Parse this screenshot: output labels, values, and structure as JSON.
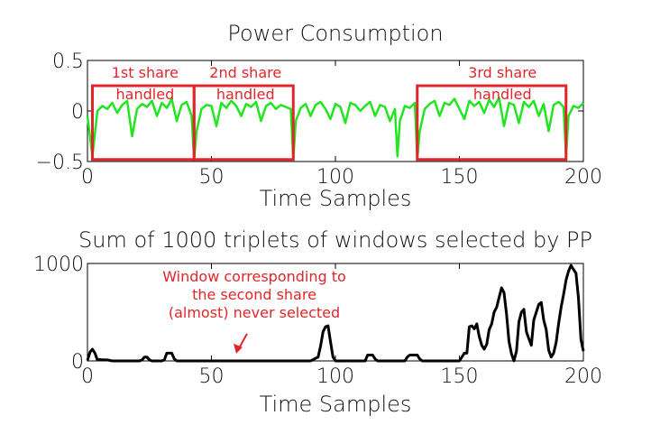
{
  "chart_data": [
    {
      "type": "line",
      "title": "Power Consumption",
      "xlabel": "Time Samples",
      "ylabel": "",
      "xlim": [
        0,
        200
      ],
      "ylim": [
        -0.5,
        0.5
      ],
      "xticks": [
        "0",
        "50",
        "100",
        "150",
        "200"
      ],
      "yticks": [
        "0.5",
        "0",
        "−0.5"
      ],
      "grid": false,
      "series_color": "#22e522",
      "annotation_color": "#e0262a",
      "series": [
        {
          "x": [
            0,
            2,
            4,
            6,
            8,
            10,
            12,
            14,
            16,
            18,
            20,
            22,
            24,
            26,
            28,
            30,
            32,
            34,
            36,
            38,
            40,
            42,
            43,
            44,
            46,
            48,
            50,
            52,
            54,
            56,
            58,
            60,
            62,
            64,
            66,
            68,
            70,
            72,
            74,
            76,
            78,
            80,
            82,
            83,
            84,
            86,
            88,
            90,
            92,
            94,
            96,
            98,
            100,
            102,
            104,
            106,
            108,
            110,
            112,
            114,
            116,
            118,
            120,
            122,
            124,
            125,
            126,
            128,
            130,
            132,
            133,
            134,
            136,
            138,
            140,
            142,
            144,
            146,
            148,
            150,
            152,
            154,
            156,
            158,
            160,
            162,
            164,
            166,
            168,
            170,
            172,
            174,
            176,
            178,
            180,
            182,
            184,
            186,
            188,
            190,
            192,
            193,
            194,
            196,
            198,
            200
          ],
          "values": [
            -0.05,
            -0.45,
            0.0,
            0.05,
            0.02,
            0.08,
            -0.02,
            0.06,
            0.1,
            -0.25,
            0.02,
            0.07,
            0.04,
            0.1,
            -0.05,
            0.08,
            0.03,
            0.12,
            -0.1,
            0.06,
            0.09,
            -0.05,
            -0.48,
            -0.2,
            0.02,
            0.06,
            0.05,
            -0.15,
            0.08,
            0.03,
            0.1,
            0.05,
            -0.05,
            0.07,
            0.04,
            0.09,
            -0.1,
            0.05,
            0.08,
            0.02,
            0.06,
            0.04,
            0.02,
            -0.48,
            -0.1,
            0.03,
            0.07,
            -0.05,
            0.06,
            0.09,
            0.02,
            -0.08,
            0.07,
            0.04,
            -0.12,
            0.08,
            0.06,
            0.0,
            0.05,
            0.09,
            -0.05,
            0.06,
            0.04,
            -0.1,
            0.02,
            -0.45,
            -0.1,
            0.05,
            0.03,
            0.08,
            -0.48,
            -0.2,
            0.02,
            0.07,
            0.1,
            -0.05,
            0.08,
            0.06,
            0.12,
            0.02,
            -0.08,
            0.1,
            0.05,
            0.09,
            -0.02,
            0.11,
            0.04,
            0.13,
            -0.15,
            0.08,
            0.06,
            -0.12,
            0.09,
            0.04,
            0.1,
            -0.05,
            0.07,
            -0.2,
            0.06,
            0.09,
            0.04,
            -0.45,
            -0.05,
            0.05,
            0.03,
            0.08
          ]
        }
      ],
      "annotations": [
        {
          "label_lines": [
            "1st share",
            "handled"
          ],
          "x_range": [
            2,
            43
          ],
          "y_range": [
            -0.48,
            0.25
          ]
        },
        {
          "label_lines": [
            "2nd share",
            "handled"
          ],
          "x_range": [
            43,
            83
          ],
          "y_range": [
            -0.48,
            0.25
          ]
        },
        {
          "label_lines": [
            "3rd share",
            "handled"
          ],
          "x_range": [
            133,
            193
          ],
          "y_range": [
            -0.48,
            0.25
          ]
        }
      ]
    },
    {
      "type": "line",
      "title": "Sum of 1000 triplets of windows selected by PP",
      "xlabel": "Time Samples",
      "ylabel": "",
      "xlim": [
        0,
        200
      ],
      "ylim": [
        0,
        1000
      ],
      "xticks": [
        "0",
        "50",
        "100",
        "150",
        "200"
      ],
      "yticks": [
        "1000",
        "0"
      ],
      "grid": false,
      "series_color": "#000000",
      "series": [
        {
          "x": [
            0,
            1,
            2,
            3,
            4,
            5,
            6,
            8,
            10,
            15,
            20,
            21,
            22,
            23,
            24,
            25,
            26,
            30,
            31,
            32,
            33,
            34,
            35,
            36,
            40,
            50,
            60,
            70,
            80,
            90,
            93,
            94,
            95,
            96,
            97,
            98,
            99,
            100,
            105,
            110,
            112,
            113,
            114,
            115,
            116,
            117,
            120,
            128,
            129,
            130,
            131,
            132,
            133,
            134,
            135,
            140,
            145,
            148,
            150,
            152,
            153,
            154,
            155,
            156,
            157,
            158,
            159,
            160,
            161,
            162,
            163,
            164,
            165,
            166,
            167,
            168,
            169,
            170,
            171,
            172,
            173,
            174,
            175,
            176,
            177,
            178,
            179,
            180,
            181,
            182,
            183,
            184,
            185,
            186,
            187,
            188,
            189,
            190,
            191,
            192,
            193,
            194,
            195,
            196,
            197,
            198,
            199,
            200
          ],
          "values": [
            5,
            90,
            120,
            80,
            10,
            15,
            10,
            10,
            0,
            0,
            0,
            0,
            10,
            40,
            40,
            10,
            0,
            0,
            10,
            80,
            80,
            80,
            20,
            0,
            0,
            0,
            0,
            0,
            0,
            0,
            40,
            150,
            300,
            350,
            360,
            200,
            40,
            0,
            0,
            0,
            0,
            60,
            60,
            60,
            20,
            0,
            0,
            0,
            40,
            60,
            60,
            60,
            60,
            20,
            0,
            0,
            0,
            0,
            0,
            80,
            80,
            350,
            360,
            330,
            380,
            250,
            160,
            120,
            170,
            320,
            380,
            500,
            550,
            650,
            750,
            700,
            480,
            200,
            70,
            0,
            100,
            400,
            500,
            530,
            300,
            230,
            160,
            420,
            500,
            580,
            600,
            420,
            320,
            110,
            40,
            80,
            190,
            380,
            550,
            680,
            830,
            920,
            980,
            940,
            900,
            650,
            220,
            100
          ]
        }
      ],
      "annotations": [
        {
          "label_lines": [
            "Window corresponding to",
            "the second share",
            "(almost) never selected"
          ],
          "arrow_to": {
            "x": 60,
            "y": 20
          }
        }
      ]
    }
  ]
}
